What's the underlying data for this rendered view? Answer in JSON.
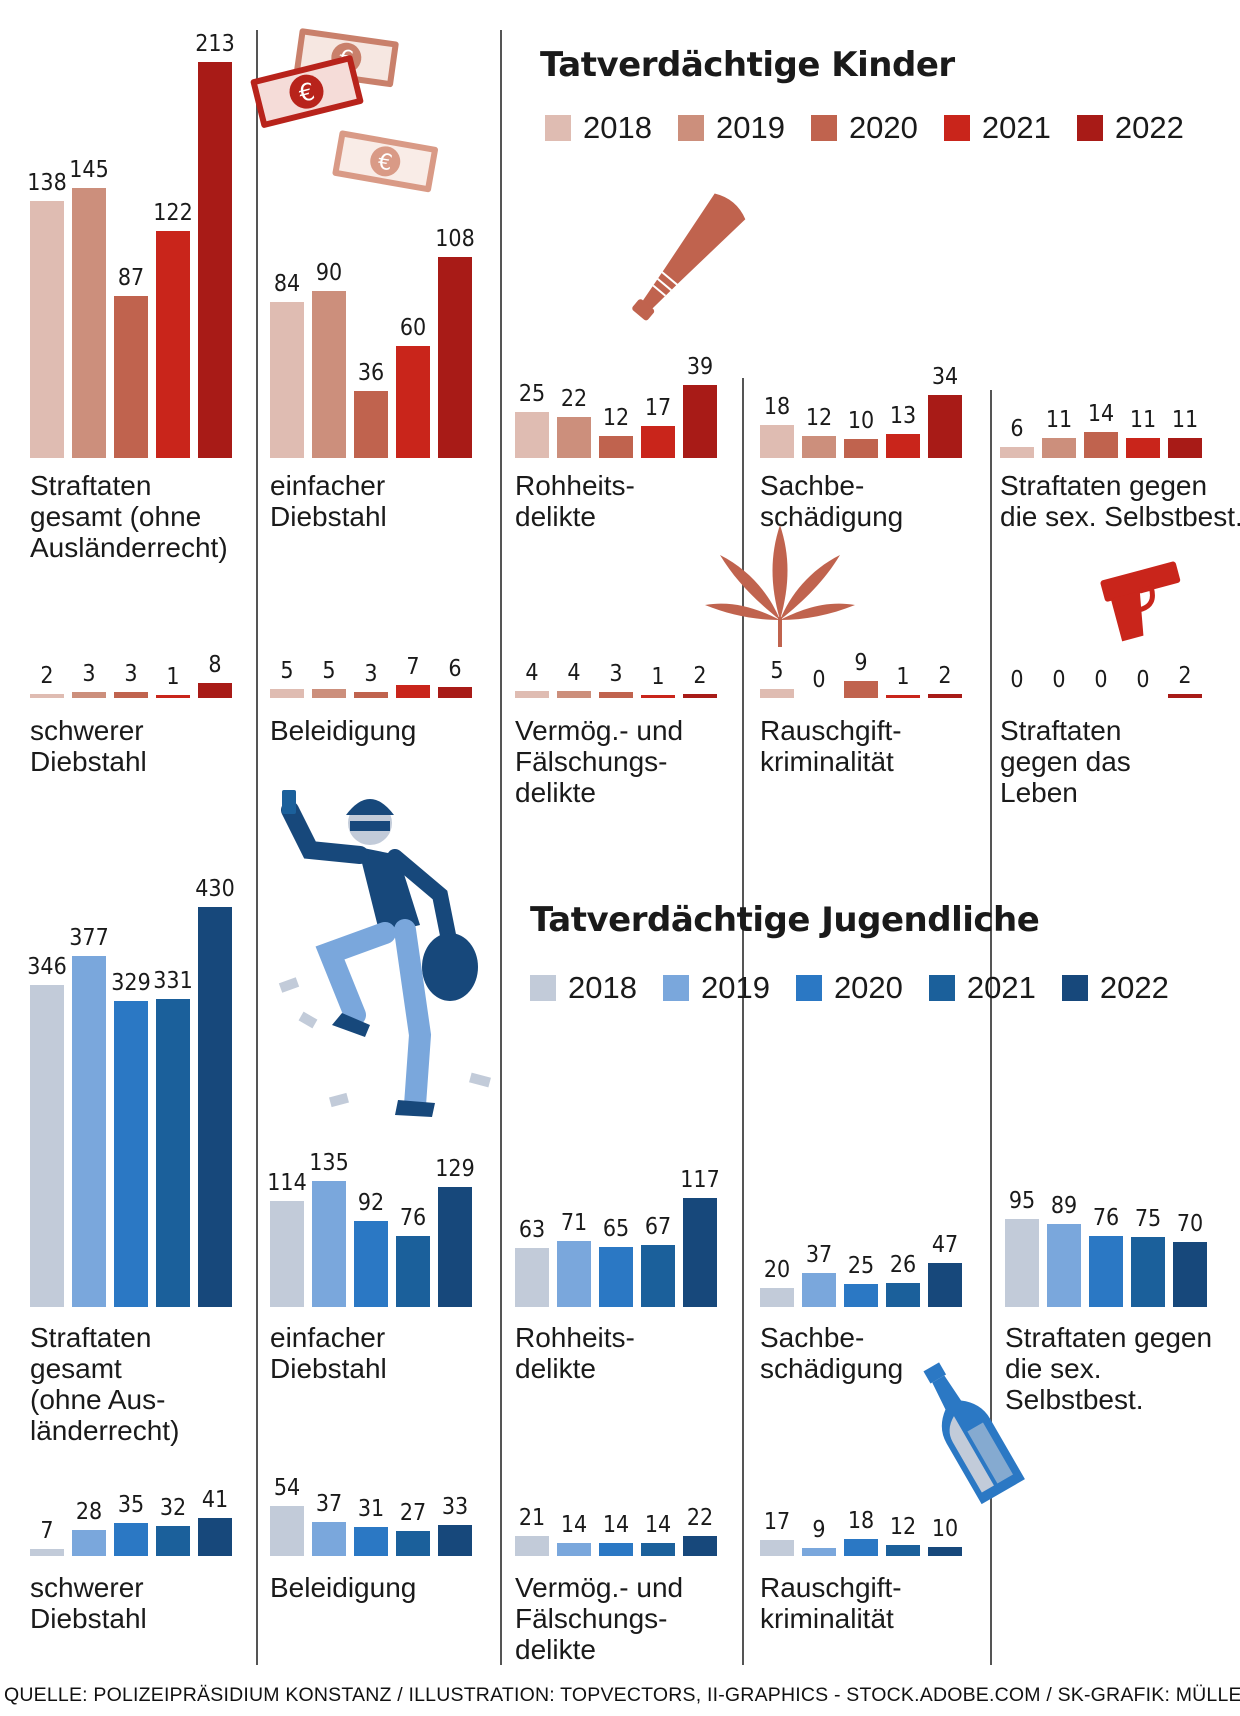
{
  "source": "QUELLE: POLIZEIPRÄSIDIUM KONSTANZ / ILLUSTRATION: TOPVECTORS, II-GRAPHICS - STOCK.ADOBE.COM / SK-GRAFIK: MÜLLER",
  "icons": [
    "money-icon",
    "baseball-bat-icon",
    "cannabis-leaf-icon",
    "pistol-icon",
    "thief-icon",
    "bottle-icon"
  ],
  "chart_data": [
    {
      "type": "bar",
      "title": "Tatverdächtige Kinder",
      "series_names": [
        "2018",
        "2019",
        "2020",
        "2021",
        "2022"
      ],
      "colors": [
        "#dfbcb2",
        "#cc8f7c",
        "#c0634e",
        "#c9251b",
        "#a81b17"
      ],
      "groups": [
        {
          "label_lines": [
            "Straftaten",
            "gesamt (ohne",
            "Ausländerrecht)"
          ],
          "values": [
            138,
            145,
            87,
            122,
            213
          ]
        },
        {
          "label_lines": [
            "einfacher",
            "Diebstahl"
          ],
          "values": [
            84,
            90,
            36,
            60,
            108
          ]
        },
        {
          "label_lines": [
            "Rohheits-",
            "delikte"
          ],
          "values": [
            25,
            22,
            12,
            17,
            39
          ]
        },
        {
          "label_lines": [
            "Sachbe-",
            "schädigung"
          ],
          "values": [
            18,
            12,
            10,
            13,
            34
          ]
        },
        {
          "label_lines": [
            "Straftaten gegen",
            "die sex. Selbstbest."
          ],
          "values": [
            6,
            11,
            14,
            11,
            11
          ]
        },
        {
          "label_lines": [
            "schwerer",
            "Diebstahl"
          ],
          "values": [
            2,
            3,
            3,
            1,
            8
          ]
        },
        {
          "label_lines": [
            "Beleidigung"
          ],
          "values": [
            5,
            5,
            3,
            7,
            6
          ]
        },
        {
          "label_lines": [
            "Vermög.- und",
            "Fälschungs-",
            "delikte"
          ],
          "values": [
            4,
            4,
            3,
            1,
            2
          ]
        },
        {
          "label_lines": [
            "Rauschgift-",
            "kriminalität"
          ],
          "values": [
            5,
            0,
            9,
            1,
            2
          ]
        },
        {
          "label_lines": [
            "Straftaten",
            "gegen das",
            "Leben"
          ],
          "values": [
            0,
            0,
            0,
            0,
            2
          ]
        }
      ]
    },
    {
      "type": "bar",
      "title": "Tatverdächtige Jugendliche",
      "series_names": [
        "2018",
        "2019",
        "2020",
        "2021",
        "2022"
      ],
      "colors": [
        "#c2cbd9",
        "#7aa7dc",
        "#2b78c4",
        "#1b609b",
        "#17487b"
      ],
      "groups": [
        {
          "label_lines": [
            "Straftaten",
            "gesamt",
            "(ohne Aus-",
            "länderrecht)"
          ],
          "values": [
            346,
            377,
            329,
            331,
            430
          ]
        },
        {
          "label_lines": [
            "einfacher",
            "Diebstahl"
          ],
          "values": [
            114,
            135,
            92,
            76,
            129
          ]
        },
        {
          "label_lines": [
            "Rohheits-",
            "delikte"
          ],
          "values": [
            63,
            71,
            65,
            67,
            117
          ]
        },
        {
          "label_lines": [
            "Sachbe-",
            "schädigung"
          ],
          "values": [
            20,
            37,
            25,
            26,
            47
          ]
        },
        {
          "label_lines": [
            "Straftaten gegen",
            "die sex.",
            "Selbstbest."
          ],
          "values": [
            95,
            89,
            76,
            75,
            70
          ]
        },
        {
          "label_lines": [
            "schwerer",
            "Diebstahl"
          ],
          "values": [
            7,
            28,
            35,
            32,
            41
          ]
        },
        {
          "label_lines": [
            "Beleidigung"
          ],
          "values": [
            54,
            37,
            31,
            27,
            33
          ]
        },
        {
          "label_lines": [
            "Vermög.- und",
            "Fälschungs-",
            "delikte"
          ],
          "values": [
            21,
            14,
            14,
            14,
            22
          ]
        },
        {
          "label_lines": [
            "Rauschgift-",
            "kriminalität"
          ],
          "values": [
            17,
            9,
            18,
            12,
            10
          ]
        }
      ]
    }
  ]
}
